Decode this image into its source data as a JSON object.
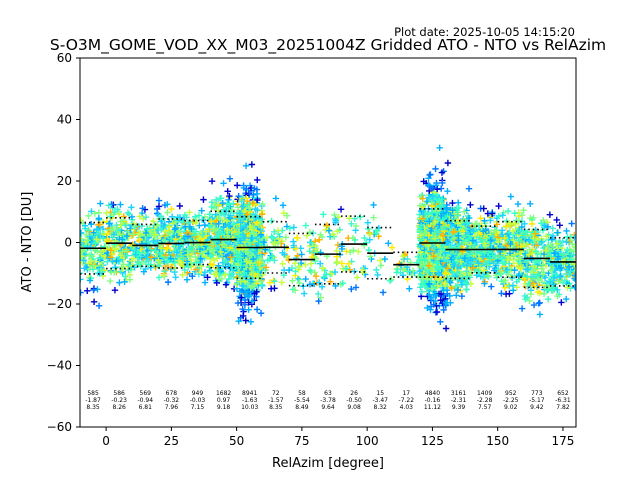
{
  "plot_date": "Plot date: 2025-10-05 14:15:20",
  "chart_data": {
    "type": "scatter",
    "title": "S-O3M_GOME_VOD_XX_M03_20251004Z Gridded ATO - NTO vs RelAzim",
    "xlabel": "RelAzim [degree]",
    "ylabel": "ATO - NTO [DU]",
    "xlim": [
      -10,
      180
    ],
    "ylim": [
      -60,
      60
    ],
    "xticks": [
      0,
      25,
      50,
      75,
      100,
      125,
      150,
      175
    ],
    "yticks": [
      -60,
      -40,
      -20,
      0,
      20,
      40,
      60
    ],
    "grid": false,
    "point_colors": [
      "#0000cc",
      "#0077ff",
      "#00b0ff",
      "#1ad3ff",
      "#40f0d0",
      "#34ffc4",
      "#80ff80",
      "#c4ff40",
      "#ffea00",
      "#ffb000"
    ],
    "scatter_clusters": [
      {
        "x_range": [
          -10,
          57
        ],
        "y_range": [
          -22,
          22
        ],
        "density": "high"
      },
      {
        "x_range": [
          40,
          58
        ],
        "y_range": [
          -40,
          30
        ],
        "density": "high"
      },
      {
        "x_range": [
          58,
          120
        ],
        "y_range": [
          -25,
          20
        ],
        "density": "low"
      },
      {
        "x_range": [
          122,
          180
        ],
        "y_range": [
          -30,
          30
        ],
        "density": "high"
      },
      {
        "x_range": [
          123,
          135
        ],
        "y_range": [
          -40,
          42
        ],
        "density": "high"
      }
    ],
    "bins": [
      {
        "x": -5,
        "count": "585",
        "mean": -1.87,
        "std": 8.35,
        "mean_label": "-1.87",
        "std_label": "8.35"
      },
      {
        "x": 5,
        "count": "586",
        "mean": -0.23,
        "std": 8.26,
        "mean_label": "-0.23",
        "std_label": "8.26"
      },
      {
        "x": 15,
        "count": "569",
        "mean": -0.94,
        "std": 6.81,
        "mean_label": "-0.94",
        "std_label": "6.81"
      },
      {
        "x": 25,
        "count": "678",
        "mean": -0.32,
        "std": 7.96,
        "mean_label": "-0.32",
        "std_label": "7.96"
      },
      {
        "x": 35,
        "count": "949",
        "mean": -0.03,
        "std": 7.15,
        "mean_label": "-0.03",
        "std_label": "7.15"
      },
      {
        "x": 45,
        "count": "1682",
        "mean": 0.97,
        "std": 9.18,
        "mean_label": "0.97",
        "std_label": "9.18"
      },
      {
        "x": 55,
        "count": "8941",
        "mean": -1.63,
        "std": 10.03,
        "mean_label": "-1.63",
        "std_label": "10.03"
      },
      {
        "x": 65,
        "count": "72",
        "mean": -1.57,
        "std": 8.35,
        "mean_label": "-1.57",
        "std_label": "8.35"
      },
      {
        "x": 75,
        "count": "58",
        "mean": -5.54,
        "std": 8.49,
        "mean_label": "-5.54",
        "std_label": "8.49"
      },
      {
        "x": 85,
        "count": "63",
        "mean": -3.78,
        "std": 9.64,
        "mean_label": "-3.78",
        "std_label": "9.64"
      },
      {
        "x": 95,
        "count": "26",
        "mean": -0.5,
        "std": 9.08,
        "mean_label": "-0.50",
        "std_label": "9.08"
      },
      {
        "x": 105,
        "count": "15",
        "mean": -3.47,
        "std": 8.32,
        "mean_label": "-3.47",
        "std_label": "8.32"
      },
      {
        "x": 115,
        "count": "17",
        "mean": -7.22,
        "std": 4.03,
        "mean_label": "-7.22",
        "std_label": "4.03"
      },
      {
        "x": 125,
        "count": "4840",
        "mean": -0.16,
        "std": 11.12,
        "mean_label": "-0.16",
        "std_label": "11.12"
      },
      {
        "x": 135,
        "count": "3161",
        "mean": -2.31,
        "std": 9.39,
        "mean_label": "-2.31",
        "std_label": "9.39"
      },
      {
        "x": 145,
        "count": "1409",
        "mean": -2.28,
        "std": 7.57,
        "mean_label": "-2.28",
        "std_label": "7.57"
      },
      {
        "x": 155,
        "count": "952",
        "mean": -2.25,
        "std": 9.02,
        "mean_label": "-2.25",
        "std_label": "9.02"
      },
      {
        "x": 165,
        "count": "773",
        "mean": -5.17,
        "std": 9.42,
        "mean_label": "-5.17",
        "std_label": "9.42"
      },
      {
        "x": 175,
        "count": "652",
        "mean": -6.31,
        "std": 7.82,
        "mean_label": "-6.31",
        "std_label": "7.82"
      }
    ]
  }
}
